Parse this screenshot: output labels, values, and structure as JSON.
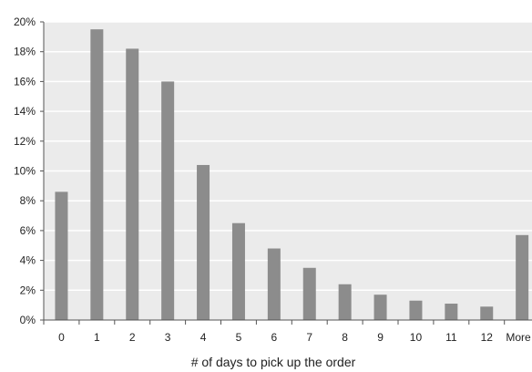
{
  "chart_data": {
    "type": "bar",
    "title": "",
    "xlabel": "# of days to pick up the order",
    "ylabel": "",
    "categories": [
      "0",
      "1",
      "2",
      "3",
      "4",
      "5",
      "6",
      "7",
      "8",
      "9",
      "10",
      "11",
      "12",
      "More"
    ],
    "series": [
      {
        "values": [
          8.6,
          19.5,
          18.2,
          16.0,
          10.4,
          6.5,
          4.8,
          3.5,
          2.4,
          1.7,
          1.3,
          1.1,
          0.9,
          5.7
        ]
      }
    ],
    "ylim": [
      0,
      20
    ],
    "yticks": [
      "0%",
      "2%",
      "4%",
      "6%",
      "8%",
      "10%",
      "12%",
      "14%",
      "16%",
      "18%",
      "20%"
    ],
    "grid": true,
    "legend": "none",
    "colors": {
      "bar": "#8c8c8c",
      "plot_background": "#ebebeb",
      "gridline": "#ffffff",
      "axis": "#555555"
    }
  }
}
